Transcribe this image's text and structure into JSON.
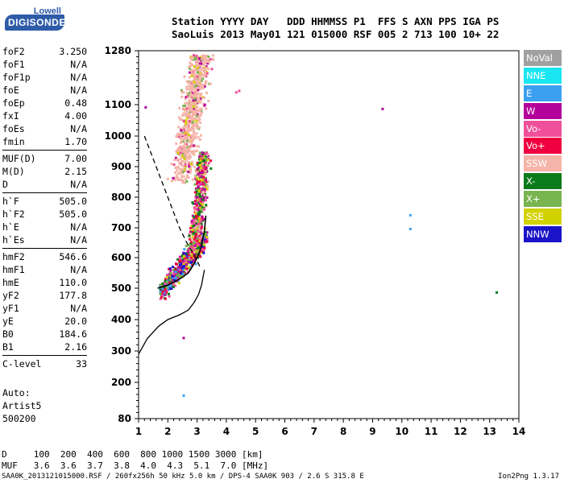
{
  "logo": {
    "line1": "Lowell",
    "line2": "DIGISONDE"
  },
  "header": {
    "line1": "Station YYYY DAY   DDD HHMMSS P1  FFS S AXN PPS IGA PS",
    "line2": "SaoLuis 2013 May01 121 015000 RSF 005 2 713 100 10+ 22"
  },
  "params_group1": [
    {
      "name": "foF2",
      "value": "3.250"
    },
    {
      "name": "foF1",
      "value": "N/A"
    },
    {
      "name": "foF1p",
      "value": "N/A"
    },
    {
      "name": "foE",
      "value": "N/A"
    },
    {
      "name": "foEp",
      "value": "0.48"
    },
    {
      "name": "fxI",
      "value": "4.00"
    },
    {
      "name": "foEs",
      "value": "N/A"
    },
    {
      "name": "fmin",
      "value": "1.70"
    }
  ],
  "params_group2": [
    {
      "name": "MUF(D)",
      "value": "7.00"
    },
    {
      "name": "M(D)",
      "value": "2.15"
    },
    {
      "name": "D",
      "value": "N/A"
    }
  ],
  "params_group3": [
    {
      "name": "h`F",
      "value": "505.0"
    },
    {
      "name": "h`F2",
      "value": "505.0"
    },
    {
      "name": "h`E",
      "value": "N/A"
    },
    {
      "name": "h`Es",
      "value": "N/A"
    }
  ],
  "params_group4": [
    {
      "name": "hmF2",
      "value": "546.6"
    },
    {
      "name": "hmF1",
      "value": "N/A"
    },
    {
      "name": "hmE",
      "value": "110.0"
    },
    {
      "name": "yF2",
      "value": "177.8"
    },
    {
      "name": "yF1",
      "value": "N/A"
    },
    {
      "name": "yE",
      "value": "20.0"
    },
    {
      "name": "B0",
      "value": "184.6"
    },
    {
      "name": "B1",
      "value": "2.16"
    }
  ],
  "params_group5": [
    {
      "name": "C-level",
      "value": "33"
    }
  ],
  "auto": {
    "line1": "Auto:",
    "line2": "Artist5",
    "line3": "500200"
  },
  "legend": [
    {
      "label": "NoVal",
      "color": "#a0a0a0"
    },
    {
      "label": "NNE",
      "color": "#19e6f0"
    },
    {
      "label": "E",
      "color": "#3ca0f0"
    },
    {
      "label": "W",
      "color": "#b4009a"
    },
    {
      "label": "Vo-",
      "color": "#f0509a"
    },
    {
      "label": "Vo+",
      "color": "#f00040"
    },
    {
      "label": "SSW",
      "color": "#f5b4a8"
    },
    {
      "label": "X-",
      "color": "#0a7a1a"
    },
    {
      "label": "X+",
      "color": "#78b450"
    },
    {
      "label": "SSE",
      "color": "#d2d200"
    },
    {
      "label": "NNW",
      "color": "#1a14c8"
    }
  ],
  "bottom_table": {
    "line1": "D     100  200  400  600  800 1000 1500 3000 [km]",
    "line2": "MUF   3.6  3.6  3.7  3.8  4.0  4.3  5.1  7.0 [MHz]"
  },
  "footer": {
    "left": "SAA0K_2013121015000.RSF / 260fx256h 50 kHz 5.0 km / DPS-4 SAA0K 903 / 2.6 S 315.8 E",
    "right": "Ion2Png 1.3.17"
  },
  "chart_data": {
    "type": "scatter",
    "title": "",
    "xlabel": "",
    "ylabel": "",
    "xlim": [
      1,
      14
    ],
    "ylim": [
      80,
      1280
    ],
    "x_ticks": [
      1,
      2,
      3,
      4,
      5,
      6,
      7,
      8,
      9,
      10,
      11,
      12,
      13,
      14
    ],
    "y_ticks": [
      80,
      200,
      300,
      400,
      500,
      600,
      700,
      800,
      900,
      1000,
      1100,
      1280
    ],
    "cluster_lower": {
      "x_range": [
        1.7,
        3.3
      ],
      "y_range": [
        470,
        720
      ],
      "colors": [
        "#f00040",
        "#b4009a",
        "#f0509a",
        "#0a7a1a",
        "#78b450",
        "#d2d200",
        "#1a14c8",
        "#3ca0f0"
      ]
    },
    "cluster_middle": {
      "x_range": [
        2.3,
        3.5
      ],
      "y_range": [
        600,
        950
      ],
      "colors": [
        "#f00040",
        "#b4009a",
        "#f0509a",
        "#0a7a1a",
        "#78b450",
        "#d2d200",
        "#f5b4a8"
      ]
    },
    "cluster_upper": {
      "x_range": [
        1.9,
        3.9
      ],
      "y_range": [
        850,
        1270
      ],
      "colors": [
        "#f5b4a8",
        "#f0509a",
        "#b4009a",
        "#78b450",
        "#d2d200"
      ]
    },
    "isolated_points": [
      {
        "x": 1.2,
        "y": 1095,
        "color": "#b4009a"
      },
      {
        "x": 9.3,
        "y": 1090,
        "color": "#b4009a"
      },
      {
        "x": 10.25,
        "y": 745,
        "color": "#3ca0f0"
      },
      {
        "x": 10.25,
        "y": 700,
        "color": "#3ca0f0"
      },
      {
        "x": 13.2,
        "y": 490,
        "color": "#0a7a1a"
      },
      {
        "x": 2.5,
        "y": 160,
        "color": "#3ca0f0"
      },
      {
        "x": 2.5,
        "y": 345,
        "color": "#b4009a"
      },
      {
        "x": 4.3,
        "y": 1145,
        "color": "#f0509a"
      },
      {
        "x": 4.4,
        "y": 1150,
        "color": "#f0509a"
      }
    ],
    "profile_solid": [
      [
        1.0,
        290
      ],
      [
        1.3,
        340
      ],
      [
        1.7,
        380
      ],
      [
        2.0,
        400
      ],
      [
        2.4,
        415
      ],
      [
        2.7,
        430
      ],
      [
        2.9,
        455
      ],
      [
        3.05,
        480
      ],
      [
        3.15,
        510
      ],
      [
        3.25,
        560
      ]
    ],
    "trace_dashed": [
      [
        1.2,
        1000
      ],
      [
        1.6,
        900
      ],
      [
        2.0,
        800
      ],
      [
        2.4,
        700
      ],
      [
        2.7,
        640
      ],
      [
        2.95,
        600
      ],
      [
        3.1,
        570
      ]
    ],
    "trace_solid_black": [
      [
        1.65,
        500
      ],
      [
        2.0,
        510
      ],
      [
        2.4,
        530
      ],
      [
        2.7,
        550
      ],
      [
        2.9,
        580
      ],
      [
        3.05,
        610
      ],
      [
        3.15,
        640
      ],
      [
        3.25,
        690
      ],
      [
        3.3,
        740
      ]
    ]
  }
}
